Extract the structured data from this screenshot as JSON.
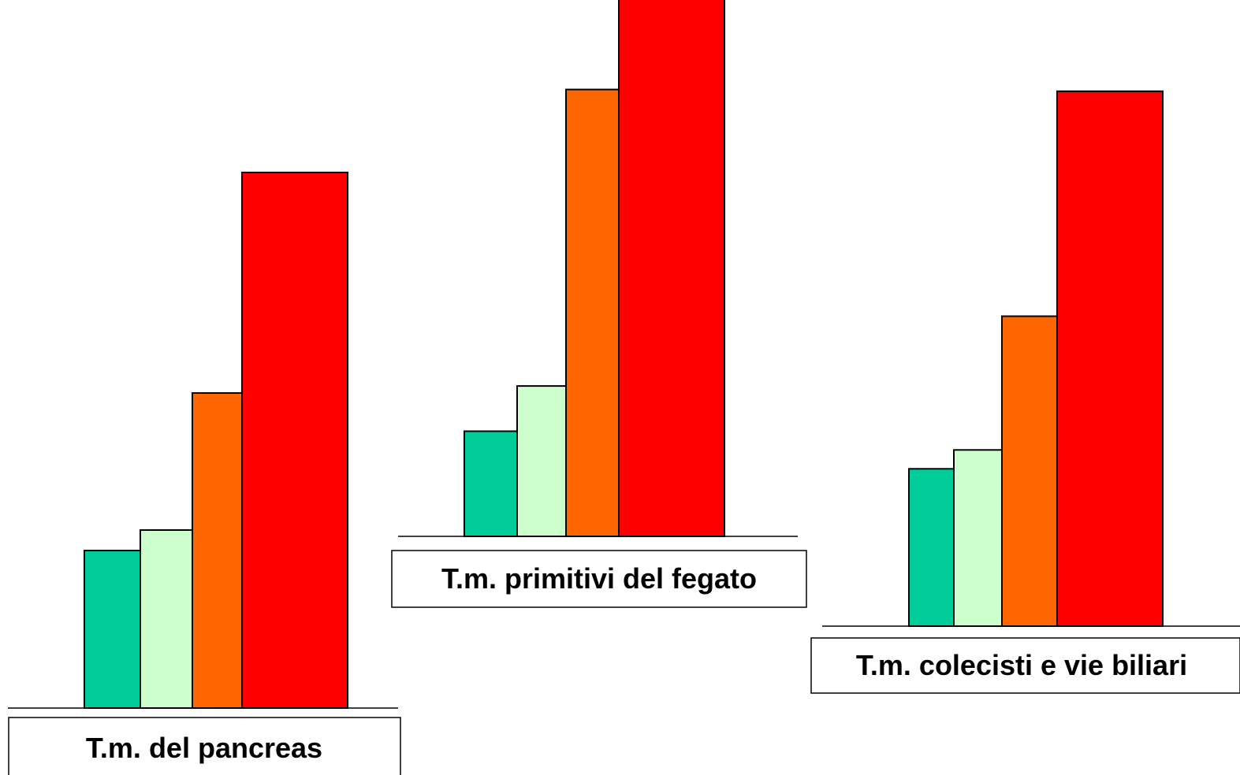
{
  "colors": {
    "series": [
      "#00cc99",
      "#ccffcc",
      "#ff6600",
      "#ff0000"
    ],
    "outline": "#000000",
    "label_box_fill": "#ffffff"
  },
  "chart_data": [
    {
      "type": "bar",
      "label": "T.m. del pancreas",
      "values": [
        1.0,
        1.13,
        2.0,
        3.4
      ],
      "ylim": [
        0,
        4
      ],
      "grid": false,
      "legend": "none"
    },
    {
      "type": "bar",
      "label": "T.m. primitivi del fegato",
      "values": [
        1.0,
        1.43,
        4.25,
        5.35
      ],
      "ylim": [
        0,
        6
      ],
      "grid": false,
      "legend": "none"
    },
    {
      "type": "bar",
      "label": "T.m. colecisti e vie biliari",
      "values": [
        1.0,
        1.12,
        1.97,
        3.4
      ],
      "ylim": [
        0,
        4
      ],
      "grid": false,
      "legend": "none"
    }
  ]
}
